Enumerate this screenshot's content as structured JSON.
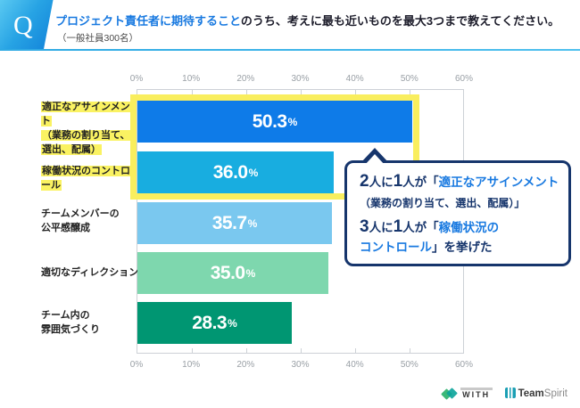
{
  "header": {
    "q_label": "Q",
    "title_highlight": "プロジェクト責任者に期待すること",
    "title_rest": "のうち、考えに最も近いものを最大3つまで教えてください。",
    "subtitle": "（一般社員300名）"
  },
  "chart_data": {
    "type": "bar",
    "orientation": "horizontal",
    "title": "プロジェクト責任者に期待すること（一般社員300名）",
    "categories": [
      "適正なアサインメント（業務の割り当て、選出、配属）",
      "稼働状況のコントロール",
      "チームメンバーの公平感醸成",
      "適切なディレクション",
      "チーム内の雰囲気づくり"
    ],
    "values": [
      50.3,
      36.0,
      35.7,
      35.0,
      28.3
    ],
    "value_labels": [
      "50.3",
      "36.0",
      "35.7",
      "35.0",
      "28.3"
    ],
    "unit": "%",
    "xlim": [
      0,
      60
    ],
    "axis_ticks": [
      "0%",
      "10%",
      "20%",
      "30%",
      "40%",
      "50%",
      "60%"
    ],
    "bar_colors": [
      "#0e7be8",
      "#18ade0",
      "#7ac8ef",
      "#7ed7ae",
      "#009672"
    ],
    "highlighted_bars": [
      0,
      1
    ],
    "grid": false,
    "legend": false
  },
  "category_labels": [
    {
      "lines": [
        "適正なアサインメント",
        "（業務の割り当て、",
        "選出、配属）"
      ],
      "highlighted": true
    },
    {
      "lines": [
        "稼働状況のコントロール"
      ],
      "highlighted": true
    },
    {
      "lines": [
        "チームメンバーの",
        "公平感醸成"
      ],
      "highlighted": false
    },
    {
      "lines": [
        "適切なディレクション"
      ],
      "highlighted": false
    },
    {
      "lines": [
        "チーム内の",
        "雰囲気づくり"
      ],
      "highlighted": false
    }
  ],
  "callout": {
    "lines": [
      {
        "row": "r1",
        "segments": [
          {
            "t": "2",
            "s": "big"
          },
          {
            "t": "人に",
            "s": "n"
          },
          {
            "t": "1",
            "s": "big"
          },
          {
            "t": "人が「",
            "s": "n"
          },
          {
            "t": "適正なアサインメント",
            "s": "blue"
          }
        ]
      },
      {
        "row": "r2",
        "segments": [
          {
            "t": "（業務の割り当て、選出、配属）」",
            "s": "small"
          }
        ]
      },
      {
        "row": "r3",
        "segments": [
          {
            "t": "3",
            "s": "big"
          },
          {
            "t": "人に",
            "s": "n"
          },
          {
            "t": "1",
            "s": "big"
          },
          {
            "t": "人が「",
            "s": "n"
          },
          {
            "t": "稼働状況の",
            "s": "blue"
          }
        ]
      },
      {
        "row": "r4",
        "segments": [
          {
            "t": "コントロール",
            "s": "blue"
          },
          {
            "t": "」を挙げた",
            "s": "n"
          }
        ]
      }
    ]
  },
  "footer": {
    "with_label": "WITH",
    "teamspirit_team": "Team",
    "teamspirit_spirit": "Spirit"
  },
  "colors": {
    "accent_blue": "#1879e0",
    "navy": "#16356c",
    "highlight_yellow": "#f9ee5e",
    "axis_gray": "#9aa0a6"
  }
}
